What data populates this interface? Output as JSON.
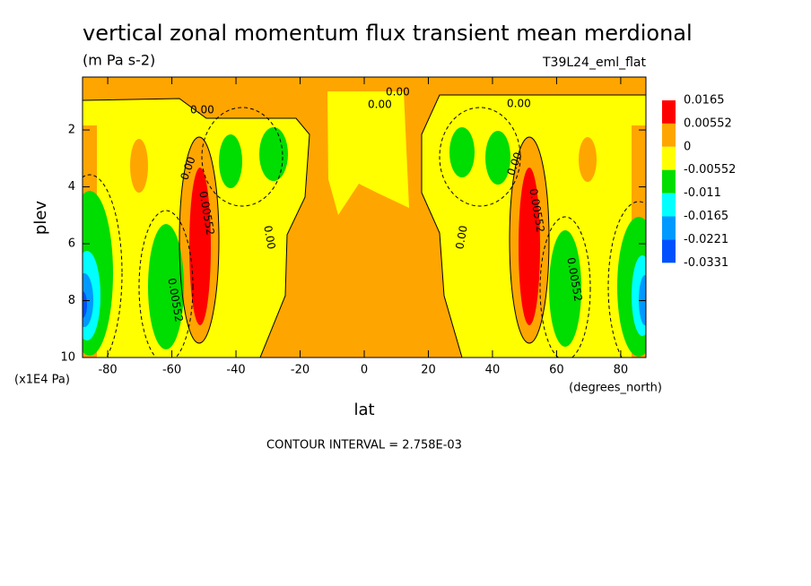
{
  "chart_data": {
    "type": "contour",
    "title": "vertical zonal momentum flux transient mean merdional",
    "subtitle": "(m Pa s-2)",
    "dataset": "T39L24_eml_flat",
    "x_label": "lat",
    "x_units": "(degrees_north)",
    "y_label": "plev",
    "y_units": "(x1E4 Pa)",
    "footnote": "CONTOUR INTERVAL = 2.758E-03",
    "xlim": [
      -87.86,
      87.86
    ],
    "xticks": [
      -80,
      -60,
      -40,
      -20,
      0,
      20,
      40,
      60,
      80
    ],
    "ylim": [
      10,
      0.14
    ],
    "yticks": [
      2,
      4,
      6,
      8,
      10
    ],
    "levels": [
      0.0165,
      0.00552,
      0,
      -0.00552,
      -0.011,
      -0.0165,
      -0.0221,
      -0.0331
    ],
    "colors": [
      "#ff0000",
      "#ffa500",
      "#ffff00",
      "#00dd00",
      "#00ffff",
      "#0099ff",
      "#0050ff"
    ],
    "contour_labels": [
      "0.00",
      "0.00",
      "0.00",
      "0.00",
      "0.00",
      "0.00",
      "0.00",
      "0.00",
      "0.00552",
      "0.00552",
      "0.00552",
      "0.00552"
    ]
  }
}
